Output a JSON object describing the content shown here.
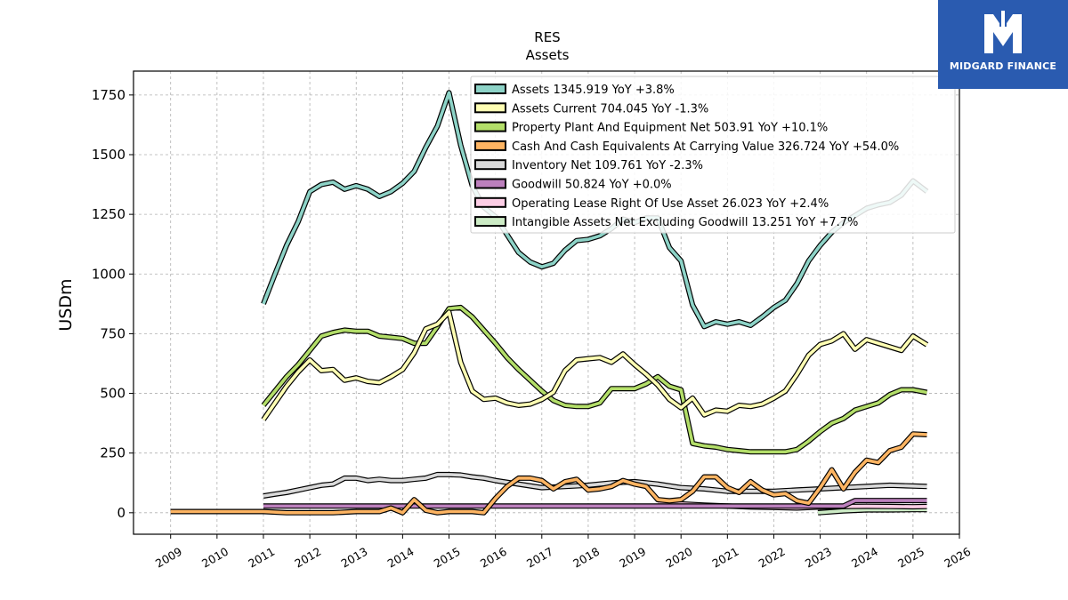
{
  "logo": {
    "brand": "MIDGARD FINANCE"
  },
  "chart_data": {
    "type": "line",
    "title": "RES",
    "subtitle": "Assets",
    "xlabel": "",
    "ylabel": "USDm",
    "xlim": [
      2008.2,
      2026.0
    ],
    "ylim": [
      -90,
      1850
    ],
    "yticks": [
      0,
      250,
      500,
      750,
      1000,
      1250,
      1500,
      1750
    ],
    "xticks": [
      2009,
      2010,
      2011,
      2012,
      2013,
      2014,
      2015,
      2016,
      2017,
      2018,
      2019,
      2020,
      2021,
      2022,
      2023,
      2024,
      2025,
      2026
    ],
    "grid": true,
    "legend_position": "top-right",
    "series": [
      {
        "name": "Assets",
        "legend": "Assets  1345.919 YoY +3.8%",
        "color": "#8dd3c7",
        "x": [
          2011.0,
          2011.25,
          2011.5,
          2011.75,
          2012.0,
          2012.25,
          2012.5,
          2012.75,
          2013.0,
          2013.25,
          2013.5,
          2013.75,
          2014.0,
          2014.25,
          2014.5,
          2014.75,
          2015.0,
          2015.25,
          2015.5,
          2015.75,
          2016.0,
          2016.25,
          2016.5,
          2016.75,
          2017.0,
          2017.25,
          2017.5,
          2017.75,
          2018.0,
          2018.25,
          2018.5,
          2018.75,
          2019.0,
          2019.25,
          2019.5,
          2019.75,
          2020.0,
          2020.25,
          2020.5,
          2020.75,
          2021.0,
          2021.25,
          2021.5,
          2021.75,
          2022.0,
          2022.25,
          2022.5,
          2022.75,
          2023.0,
          2023.25,
          2023.5,
          2023.75,
          2024.0,
          2024.25,
          2024.5,
          2024.75,
          2025.0,
          2025.3
        ],
        "values": [
          875,
          1000,
          1120,
          1220,
          1345,
          1375,
          1385,
          1355,
          1370,
          1355,
          1325,
          1345,
          1380,
          1430,
          1530,
          1620,
          1760,
          1540,
          1370,
          1280,
          1240,
          1165,
          1090,
          1050,
          1030,
          1045,
          1100,
          1140,
          1145,
          1160,
          1190,
          1230,
          1215,
          1235,
          1235,
          1110,
          1055,
          870,
          780,
          800,
          790,
          800,
          785,
          820,
          860,
          890,
          960,
          1055,
          1120,
          1175,
          1215,
          1245,
          1275,
          1290,
          1300,
          1330,
          1390,
          1346
        ]
      },
      {
        "name": "Assets Current",
        "legend": "Assets Current  704.045 YoY -1.3%",
        "color": "#ffffb3",
        "x": [
          2011.0,
          2011.25,
          2011.5,
          2011.75,
          2012.0,
          2012.25,
          2012.5,
          2012.75,
          2013.0,
          2013.25,
          2013.5,
          2013.75,
          2014.0,
          2014.25,
          2014.5,
          2014.75,
          2015.0,
          2015.25,
          2015.5,
          2015.75,
          2016.0,
          2016.25,
          2016.5,
          2016.75,
          2017.0,
          2017.25,
          2017.5,
          2017.75,
          2018.0,
          2018.25,
          2018.5,
          2018.75,
          2019.0,
          2019.25,
          2019.5,
          2019.75,
          2020.0,
          2020.25,
          2020.5,
          2020.75,
          2021.0,
          2021.25,
          2021.5,
          2021.75,
          2022.0,
          2022.25,
          2022.5,
          2022.75,
          2023.0,
          2023.25,
          2023.5,
          2023.75,
          2024.0,
          2024.25,
          2024.5,
          2024.75,
          2025.0,
          2025.3
        ],
        "values": [
          390,
          460,
          530,
          590,
          640,
          595,
          600,
          555,
          565,
          550,
          545,
          570,
          600,
          670,
          770,
          790,
          840,
          630,
          510,
          475,
          480,
          460,
          450,
          455,
          475,
          505,
          595,
          640,
          645,
          650,
          630,
          665,
          620,
          580,
          535,
          475,
          440,
          480,
          410,
          430,
          425,
          450,
          445,
          455,
          480,
          510,
          580,
          660,
          705,
          720,
          750,
          685,
          725,
          710,
          695,
          680,
          740,
          704
        ]
      },
      {
        "name": "Property Plant And Equipment Net",
        "legend": "Property Plant And Equipment Net  503.91 YoY +10.1%",
        "color": "#b3de69",
        "x": [
          2011.0,
          2011.25,
          2011.5,
          2011.75,
          2012.0,
          2012.25,
          2012.5,
          2012.75,
          2013.0,
          2013.25,
          2013.5,
          2013.75,
          2014.0,
          2014.25,
          2014.5,
          2014.75,
          2015.0,
          2015.25,
          2015.5,
          2015.75,
          2016.0,
          2016.25,
          2016.5,
          2016.75,
          2017.0,
          2017.25,
          2017.5,
          2017.75,
          2018.0,
          2018.25,
          2018.5,
          2018.75,
          2019.0,
          2019.25,
          2019.5,
          2019.75,
          2020.0,
          2020.25,
          2020.5,
          2020.75,
          2021.0,
          2021.25,
          2021.5,
          2021.75,
          2022.0,
          2022.25,
          2022.5,
          2022.75,
          2023.0,
          2023.25,
          2023.5,
          2023.75,
          2024.0,
          2024.25,
          2024.5,
          2024.75,
          2025.0,
          2025.3
        ],
        "values": [
          450,
          510,
          570,
          620,
          680,
          740,
          755,
          765,
          760,
          760,
          740,
          735,
          730,
          710,
          710,
          780,
          855,
          860,
          820,
          765,
          710,
          650,
          600,
          555,
          510,
          470,
          450,
          445,
          445,
          460,
          520,
          520,
          520,
          540,
          570,
          530,
          515,
          290,
          280,
          275,
          265,
          260,
          255,
          255,
          255,
          255,
          265,
          300,
          340,
          375,
          395,
          430,
          445,
          460,
          495,
          515,
          515,
          504
        ]
      },
      {
        "name": "Cash And Cash Equivalents At Carrying Value",
        "legend": "Cash And Cash Equivalents At Carrying Value  326.724 YoY +54.0%",
        "color": "#fdb462",
        "x": [
          2009.0,
          2010.0,
          2011.0,
          2011.5,
          2012.0,
          2012.5,
          2013.0,
          2013.5,
          2013.75,
          2014.0,
          2014.25,
          2014.5,
          2014.75,
          2015.0,
          2015.25,
          2015.5,
          2015.75,
          2016.0,
          2016.25,
          2016.5,
          2016.75,
          2017.0,
          2017.25,
          2017.5,
          2017.75,
          2018.0,
          2018.25,
          2018.5,
          2018.75,
          2019.0,
          2019.25,
          2019.5,
          2019.75,
          2020.0,
          2020.25,
          2020.5,
          2020.75,
          2021.0,
          2021.25,
          2021.5,
          2021.75,
          2022.0,
          2022.25,
          2022.5,
          2022.75,
          2023.0,
          2023.25,
          2023.5,
          2023.75,
          2024.0,
          2024.25,
          2024.5,
          2024.75,
          2025.0,
          2025.3
        ],
        "values": [
          5,
          5,
          5,
          0,
          0,
          0,
          5,
          5,
          20,
          0,
          55,
          10,
          0,
          5,
          5,
          5,
          0,
          60,
          110,
          145,
          145,
          135,
          100,
          130,
          140,
          95,
          100,
          110,
          135,
          120,
          110,
          55,
          50,
          55,
          90,
          150,
          150,
          105,
          85,
          130,
          95,
          75,
          80,
          50,
          40,
          105,
          180,
          100,
          170,
          220,
          210,
          260,
          275,
          330,
          327
        ]
      },
      {
        "name": "Inventory Net",
        "legend": "Inventory Net  109.761 YoY -2.3%",
        "color": "#d9d9d9",
        "x": [
          2011.0,
          2011.25,
          2011.5,
          2011.75,
          2012.0,
          2012.25,
          2012.5,
          2012.75,
          2013.0,
          2013.25,
          2013.5,
          2013.75,
          2014.0,
          2014.25,
          2014.5,
          2014.75,
          2015.0,
          2015.25,
          2015.5,
          2015.75,
          2016.0,
          2016.5,
          2017.0,
          2017.5,
          2018.0,
          2018.5,
          2019.0,
          2019.5,
          2020.0,
          2020.5,
          2021.0,
          2021.5,
          2022.0,
          2022.5,
          2023.0,
          2023.5,
          2024.0,
          2024.5,
          2025.0,
          2025.3
        ],
        "values": [
          70,
          78,
          85,
          95,
          105,
          115,
          120,
          145,
          145,
          135,
          140,
          135,
          135,
          140,
          145,
          160,
          160,
          158,
          150,
          145,
          135,
          120,
          105,
          110,
          115,
          125,
          130,
          120,
          105,
          100,
          90,
          90,
          90,
          95,
          100,
          105,
          110,
          115,
          112,
          110
        ]
      },
      {
        "name": "Goodwill",
        "legend": "Goodwill  50.824 YoY +0.0%",
        "color": "#bc80bd",
        "x": [
          2011.0,
          2023.5,
          2023.75,
          2025.3
        ],
        "values": [
          28,
          28,
          51,
          51
        ]
      },
      {
        "name": "Operating Lease Right Of Use Asset",
        "legend": "Operating Lease Right Of Use Asset  26.023 YoY +2.4%",
        "color": "#fccde5",
        "x": [
          2019.5,
          2020.0,
          2020.5,
          2021.0,
          2021.5,
          2022.0,
          2022.5,
          2023.0,
          2023.5,
          2024.0,
          2024.5,
          2025.0,
          2025.3
        ],
        "values": [
          42,
          37,
          32,
          28,
          24,
          22,
          20,
          24,
          26,
          27,
          26,
          25,
          26
        ]
      },
      {
        "name": "Intangible Assets Net Excluding Goodwill",
        "legend": "Intangible Assets Net Excluding Goodwill  13.251 YoY +7.7%",
        "color": "#ccebc5",
        "x": [
          2022.95,
          2023.5,
          2024.0,
          2024.5,
          2025.0,
          2025.3
        ],
        "values": [
          0,
          8,
          12,
          12,
          13,
          13
        ]
      }
    ]
  }
}
